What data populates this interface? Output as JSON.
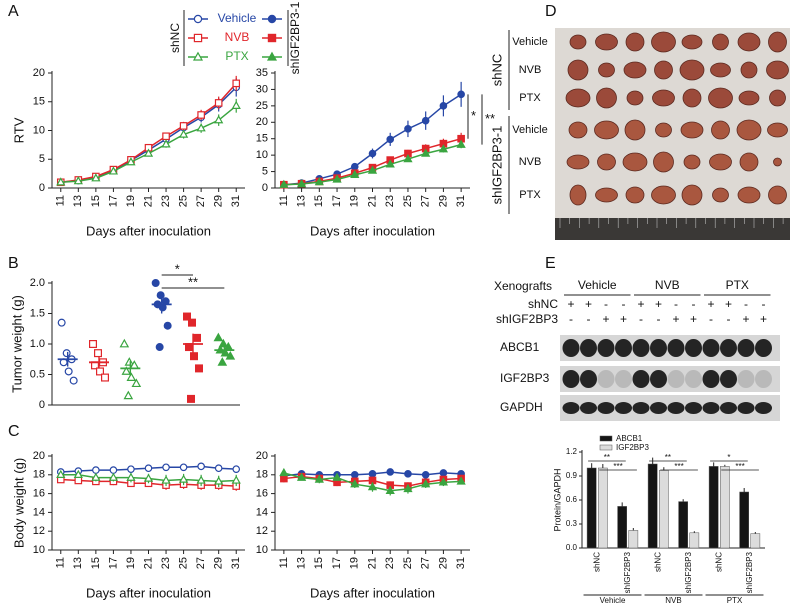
{
  "panel_labels": [
    "A",
    "B",
    "C",
    "D",
    "E"
  ],
  "chart_data": [
    {
      "type": "line",
      "group": "shNC",
      "x": [
        11,
        13,
        15,
        17,
        19,
        21,
        23,
        25,
        27,
        29,
        31
      ],
      "xlim": [
        10,
        32
      ],
      "xticks": [
        11,
        13,
        15,
        17,
        19,
        21,
        23,
        25,
        27,
        29,
        31
      ],
      "ylim": [
        0,
        20
      ],
      "yticks": [
        0,
        5,
        10,
        15,
        20
      ],
      "ylabel": "RTV",
      "xlabel": "Days after inoculation",
      "series": [
        {
          "name": "Vehicle",
          "color": "#2747a6",
          "marker": "circle",
          "filled": false,
          "values": [
            1,
            1.3,
            1.9,
            3,
            4.8,
            6.6,
            8.5,
            10.5,
            12.3,
            14.5,
            17.5
          ],
          "errors": [
            0.1,
            0.2,
            0.2,
            0.3,
            0.4,
            0.5,
            0.6,
            0.7,
            0.9,
            1.2,
            1.6
          ]
        },
        {
          "name": "NVB",
          "color": "#e0262b",
          "marker": "square",
          "filled": false,
          "values": [
            1,
            1.4,
            2,
            3.2,
            4.9,
            7,
            9,
            10.8,
            12.7,
            14.8,
            18.2
          ],
          "errors": [
            0.1,
            0.2,
            0.2,
            0.3,
            0.4,
            0.5,
            0.6,
            0.7,
            0.9,
            1.1,
            1.3
          ]
        },
        {
          "name": "PTX",
          "color": "#3aa540",
          "marker": "triangle",
          "filled": false,
          "values": [
            1,
            1.2,
            1.7,
            2.9,
            4.5,
            6,
            7.6,
            9.3,
            10.4,
            11.8,
            14.3
          ],
          "errors": [
            0.1,
            0.1,
            0.2,
            0.3,
            0.4,
            0.5,
            0.6,
            0.7,
            0.8,
            1.0,
            1.2
          ]
        }
      ]
    },
    {
      "type": "line",
      "group": "shIGF2BP3-1",
      "x": [
        11,
        13,
        15,
        17,
        19,
        21,
        23,
        25,
        27,
        29,
        31
      ],
      "xlim": [
        10,
        32
      ],
      "xticks": [
        11,
        13,
        15,
        17,
        19,
        21,
        23,
        25,
        27,
        29,
        31
      ],
      "ylim": [
        0,
        35
      ],
      "yticks": [
        0,
        5,
        10,
        15,
        20,
        25,
        30,
        35
      ],
      "xlabel": "Days after inoculation",
      "annotations": [
        "*",
        "**"
      ],
      "series": [
        {
          "color": "#2747a6",
          "marker": "circle",
          "filled": true,
          "values": [
            1,
            1.5,
            2.8,
            4.2,
            6.5,
            10.5,
            14.8,
            18,
            20.5,
            25,
            28.5
          ],
          "errors": [
            0.1,
            0.3,
            0.5,
            0.7,
            1,
            1.5,
            2,
            2.5,
            2.8,
            3.2,
            3.8
          ]
        },
        {
          "color": "#e0262b",
          "marker": "square",
          "filled": true,
          "values": [
            1,
            1.3,
            2,
            3,
            4.5,
            6.2,
            8.5,
            10.5,
            12,
            13.5,
            15
          ],
          "errors": [
            0.1,
            0.2,
            0.3,
            0.4,
            0.5,
            0.7,
            0.9,
            1.1,
            1.3,
            1.5,
            1.8
          ]
        },
        {
          "color": "#3aa540",
          "marker": "triangle",
          "filled": true,
          "values": [
            1,
            1.2,
            1.8,
            2.6,
            4,
            5.3,
            7.2,
            8.8,
            10.5,
            11.8,
            13.2
          ],
          "errors": [
            0.1,
            0.2,
            0.3,
            0.3,
            0.4,
            0.5,
            0.7,
            0.8,
            0.9,
            1,
            1.1
          ]
        }
      ]
    },
    {
      "type": "dot",
      "ylim": [
        0,
        2
      ],
      "yticks": [
        0,
        0.5,
        {
          "value": 1,
          "label": "1.0"
        },
        1.5,
        {
          "value": 2,
          "label": "2.0"
        }
      ],
      "ylabel": "Tumor weight (g)",
      "annotations": [
        "*",
        "**"
      ],
      "groups": [
        {
          "color": "#2747a6",
          "marker": "circle",
          "filled": false,
          "values": [
            1.35,
            0.85,
            0.75,
            0.7,
            0.55,
            0.4
          ],
          "mean": 0.75,
          "sem": 0.12
        },
        {
          "color": "#e0262b",
          "marker": "square",
          "filled": false,
          "values": [
            1.0,
            0.85,
            0.7,
            0.65,
            0.55,
            0.45
          ],
          "mean": 0.7,
          "sem": 0.09
        },
        {
          "color": "#3aa540",
          "marker": "triangle",
          "filled": false,
          "values": [
            1.0,
            0.7,
            0.65,
            0.55,
            0.45,
            0.35,
            0.15
          ],
          "mean": 0.6,
          "sem": 0.12
        },
        {
          "color": "#2747a6",
          "marker": "circle",
          "filled": true,
          "values": [
            2.0,
            1.8,
            1.7,
            1.65,
            1.6,
            1.3,
            0.95
          ],
          "mean": 1.65,
          "sem": 0.15
        },
        {
          "color": "#e0262b",
          "marker": "square",
          "filled": true,
          "values": [
            1.45,
            1.35,
            1.1,
            0.95,
            0.8,
            0.6,
            0.1
          ],
          "mean": 1.0,
          "sem": 0.17
        },
        {
          "color": "#3aa540",
          "marker": "triangle",
          "filled": true,
          "values": [
            1.1,
            1.0,
            0.95,
            0.9,
            0.85,
            0.8,
            0.7
          ],
          "mean": 0.9,
          "sem": 0.06
        }
      ]
    },
    {
      "type": "line",
      "x": [
        11,
        13,
        15,
        17,
        19,
        21,
        23,
        25,
        27,
        29,
        31
      ],
      "xlim": [
        10,
        32
      ],
      "xticks": [
        11,
        13,
        15,
        17,
        19,
        21,
        23,
        25,
        27,
        29,
        31
      ],
      "ylim": [
        10,
        20
      ],
      "yticks": [
        10,
        12,
        14,
        16,
        18,
        20
      ],
      "ylabel": "Body weight (g)",
      "xlabel": "Days after inoculation",
      "series": [
        {
          "color": "#2747a6",
          "marker": "circle",
          "filled": false,
          "values": [
            18.3,
            18.4,
            18.5,
            18.5,
            18.6,
            18.7,
            18.8,
            18.8,
            18.9,
            18.7,
            18.6
          ],
          "errors": [
            0.3,
            0.3,
            0.3,
            0.3,
            0.3,
            0.3,
            0.3,
            0.3,
            0.4,
            0.4,
            0.4
          ]
        },
        {
          "color": "#e0262b",
          "marker": "square",
          "filled": false,
          "values": [
            17.5,
            17.4,
            17.3,
            17.3,
            17.1,
            17.1,
            16.9,
            17,
            16.9,
            16.9,
            16.8
          ],
          "errors": [
            0.3,
            0.3,
            0.3,
            0.4,
            0.4,
            0.4,
            0.5,
            0.5,
            0.5,
            0.5,
            0.5
          ]
        },
        {
          "color": "#3aa540",
          "marker": "triangle",
          "filled": false,
          "values": [
            18.0,
            18.0,
            17.7,
            17.7,
            17.7,
            17.6,
            17.4,
            17.5,
            17.4,
            17.3,
            17.4
          ],
          "errors": [
            0.3,
            0.3,
            0.4,
            0.4,
            0.5,
            0.5,
            0.6,
            0.6,
            0.6,
            0.6,
            0.6
          ]
        }
      ]
    },
    {
      "type": "line",
      "x": [
        11,
        13,
        15,
        17,
        19,
        21,
        23,
        25,
        27,
        29,
        31
      ],
      "xlim": [
        10,
        32
      ],
      "xticks": [
        11,
        13,
        15,
        17,
        19,
        21,
        23,
        25,
        27,
        29,
        31
      ],
      "ylim": [
        10,
        20
      ],
      "yticks": [
        10,
        12,
        14,
        16,
        18,
        20
      ],
      "xlabel": "Days after inoculation",
      "series": [
        {
          "color": "#2747a6",
          "marker": "circle",
          "filled": true,
          "values": [
            17.9,
            18.1,
            18.0,
            18.0,
            18.0,
            18.1,
            18.3,
            18.1,
            18.0,
            18.2,
            18.1
          ],
          "errors": [
            0.3,
            0.3,
            0.3,
            0.3,
            0.3,
            0.3,
            0.3,
            0.3,
            0.3,
            0.3,
            0.3
          ]
        },
        {
          "color": "#e0262b",
          "marker": "square",
          "filled": true,
          "values": [
            17.6,
            17.8,
            17.6,
            17.2,
            17.3,
            17.4,
            16.9,
            16.8,
            17.2,
            17.5,
            17.6
          ],
          "errors": [
            0.4,
            0.3,
            0.3,
            0.4,
            0.4,
            0.4,
            0.4,
            0.4,
            0.4,
            0.3,
            0.3
          ]
        },
        {
          "color": "#3aa540",
          "marker": "triangle",
          "filled": true,
          "values": [
            18.2,
            17.7,
            17.5,
            17.7,
            17.0,
            16.7,
            16.3,
            16.5,
            17.0,
            17.2,
            17.3
          ],
          "errors": [
            0.3,
            0.3,
            0.4,
            0.3,
            0.4,
            0.5,
            0.5,
            0.5,
            0.4,
            0.4,
            0.3
          ]
        }
      ]
    },
    {
      "type": "bar",
      "ylabel": "Protein/GAPDH",
      "categories": [
        "shNC",
        "shIGF2BP3",
        "shNC",
        "shIGF2BP3",
        "shNC",
        "shIGF2BP3"
      ],
      "groups": [
        "Vehicle",
        "NVB",
        "PTX"
      ],
      "ylim": [
        0,
        1.2
      ],
      "yticks": [
        {
          "value": 0,
          "label": "0.0"
        },
        0.3,
        0.6,
        0.9,
        1.2
      ],
      "annotations": [
        "**",
        "***",
        "**",
        "***",
        "*",
        "***"
      ],
      "series": [
        {
          "name": "ABCB1",
          "color": "#151515",
          "values": [
            1.0,
            0.52,
            1.05,
            0.58,
            1.02,
            0.7
          ],
          "errors": [
            0.06,
            0.05,
            0.08,
            0.03,
            0.05,
            0.05
          ]
        },
        {
          "name": "IGF2BP3",
          "color": "#dcdcdc",
          "values": [
            1.0,
            0.22,
            0.97,
            0.19,
            1.02,
            0.18
          ],
          "errors": [
            0.05,
            0.03,
            0.04,
            0.02,
            0.02,
            0.02
          ]
        }
      ]
    }
  ],
  "tumor_photo": {
    "groups": [
      "shNC",
      "shIGF2BP3-1"
    ],
    "rows": [
      "Vehicle",
      "NVB",
      "PTX",
      "Vehicle",
      "NVB",
      "PTX"
    ]
  },
  "western_blot": {
    "header": "Xenografts",
    "conditions": [
      "Vehicle",
      "NVB",
      "PTX"
    ],
    "rows": [
      {
        "label": "shNC",
        "signs": [
          "+",
          "+",
          "-",
          "-",
          "+",
          "+",
          "-",
          "-",
          "+",
          "+",
          "-",
          "-"
        ]
      },
      {
        "label": "shIGF2BP3",
        "signs": [
          "-",
          "-",
          "+",
          "+",
          "-",
          "-",
          "+",
          "+",
          "-",
          "-",
          "+",
          "+"
        ]
      }
    ],
    "bands": [
      "ABCB1",
      "IGF2BP3",
      "GAPDH"
    ]
  }
}
